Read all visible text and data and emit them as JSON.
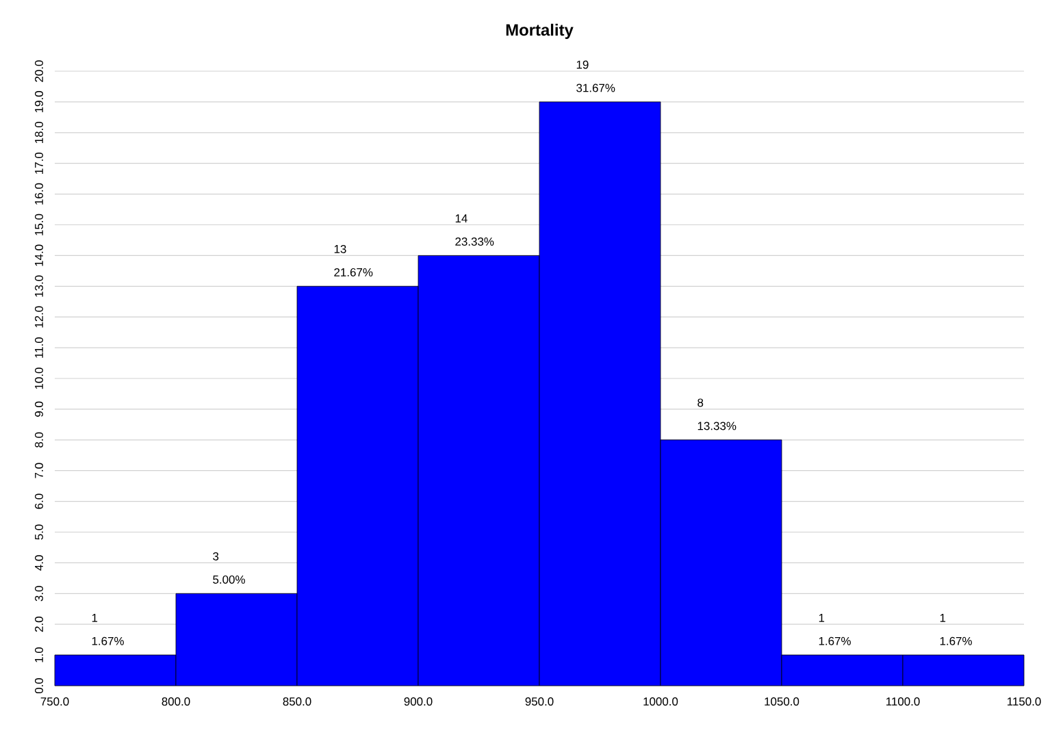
{
  "chart_data": {
    "type": "histogram",
    "title": "Mortality",
    "bins": [
      750,
      800,
      850,
      900,
      950,
      1000,
      1050,
      1100,
      1150
    ],
    "values": [
      1,
      3,
      13,
      14,
      19,
      8,
      1,
      1
    ],
    "color": "#0000ff",
    "data_labels": true,
    "annotations": [
      {
        "text": "1.67%",
        "x": 775,
        "y": 1
      },
      {
        "text": "5.00%",
        "x": 825,
        "y": 3
      },
      {
        "text": "21.67%",
        "x": 875,
        "y": 13
      },
      {
        "text": "23.33%",
        "x": 925,
        "y": 14
      },
      {
        "text": "31.67%",
        "x": 975,
        "y": 19
      },
      {
        "text": "13.33%",
        "x": 1025,
        "y": 8
      },
      {
        "text": "1.67%",
        "x": 1075,
        "y": 1
      },
      {
        "text": "1.67%",
        "x": 1125,
        "y": 1
      }
    ],
    "xlim": [
      750,
      1150
    ],
    "xticks": [
      {
        "value": 750,
        "label": "750.0"
      },
      {
        "value": 800,
        "label": "800.0"
      },
      {
        "value": 850,
        "label": "850.0"
      },
      {
        "value": 900,
        "label": "900.0"
      },
      {
        "value": 950,
        "label": "950.0"
      },
      {
        "value": 1000,
        "label": "1000.0"
      },
      {
        "value": 1050,
        "label": "1050.0"
      },
      {
        "value": 1100,
        "label": "1100.0"
      },
      {
        "value": 1150,
        "label": "1150.0"
      }
    ],
    "ylim": [
      0,
      20
    ],
    "yticks": [
      {
        "value": 0,
        "label": "0.0"
      },
      {
        "value": 1,
        "label": "1.0"
      },
      {
        "value": 2,
        "label": "2.0"
      },
      {
        "value": 3,
        "label": "3.0"
      },
      {
        "value": 4,
        "label": "4.0"
      },
      {
        "value": 5,
        "label": "5.0"
      },
      {
        "value": 6,
        "label": "6.0"
      },
      {
        "value": 7,
        "label": "7.0"
      },
      {
        "value": 8,
        "label": "8.0"
      },
      {
        "value": 9,
        "label": "9.0"
      },
      {
        "value": 10,
        "label": "10.0"
      },
      {
        "value": 11,
        "label": "11.0"
      },
      {
        "value": 12,
        "label": "12.0"
      },
      {
        "value": 13,
        "label": "13.0"
      },
      {
        "value": 14,
        "label": "14.0"
      },
      {
        "value": 15,
        "label": "15.0"
      },
      {
        "value": 16,
        "label": "16.0"
      },
      {
        "value": 17,
        "label": "17.0"
      },
      {
        "value": 18,
        "label": "18.0"
      },
      {
        "value": 19,
        "label": "19.0"
      },
      {
        "value": 20,
        "label": "20.0"
      }
    ],
    "grid": "y"
  }
}
